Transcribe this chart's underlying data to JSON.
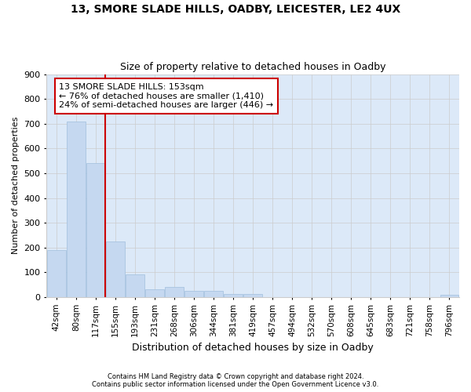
{
  "title1": "13, SMORE SLADE HILLS, OADBY, LEICESTER, LE2 4UX",
  "title2": "Size of property relative to detached houses in Oadby",
  "xlabel": "Distribution of detached houses by size in Oadby",
  "ylabel": "Number of detached properties",
  "footer1": "Contains HM Land Registry data © Crown copyright and database right 2024.",
  "footer2": "Contains public sector information licensed under the Open Government Licence v3.0.",
  "categories": [
    "42sqm",
    "80sqm",
    "117sqm",
    "155sqm",
    "193sqm",
    "231sqm",
    "268sqm",
    "306sqm",
    "344sqm",
    "381sqm",
    "419sqm",
    "457sqm",
    "494sqm",
    "532sqm",
    "570sqm",
    "608sqm",
    "645sqm",
    "683sqm",
    "721sqm",
    "758sqm",
    "796sqm"
  ],
  "values": [
    190,
    710,
    540,
    225,
    90,
    30,
    40,
    25,
    25,
    12,
    12,
    0,
    0,
    0,
    0,
    0,
    0,
    0,
    0,
    0,
    8
  ],
  "bar_color": "#c5d8f0",
  "bar_edge_color": "#a0bedd",
  "grid_color": "#cccccc",
  "bg_color": "#dce9f8",
  "vline_x": 2.5,
  "vline_color": "#cc0000",
  "annotation_text": "13 SMORE SLADE HILLS: 153sqm\n← 76% of detached houses are smaller (1,410)\n24% of semi-detached houses are larger (446) →",
  "annotation_box_color": "#cc0000",
  "ylim": [
    0,
    900
  ],
  "yticks": [
    0,
    100,
    200,
    300,
    400,
    500,
    600,
    700,
    800,
    900
  ]
}
